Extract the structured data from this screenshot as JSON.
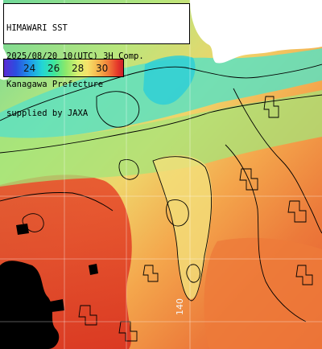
{
  "map": {
    "title_lines": [
      "HIMAWARI SST",
      "2025/08/20 10(UTC) 3H Comp.",
      "Kanagawa Prefecture",
      "supplied by JAXA"
    ],
    "colorbar": {
      "labels": [
        "24",
        "26",
        "28",
        "30"
      ],
      "colors": [
        "#5a2bd4",
        "#1e9ae8",
        "#22d6d6",
        "#8ee86a",
        "#f6e36a",
        "#f07a38",
        "#cc1e2a"
      ]
    },
    "longitude_label": "140",
    "palette": {
      "land": "#ffffff",
      "cloud_mask": "#000000",
      "cool_water": "#3fd6b0",
      "mid_water": "#c8e87a",
      "warm_water": "#f2a24a",
      "hot_water": "#e2462a"
    }
  }
}
